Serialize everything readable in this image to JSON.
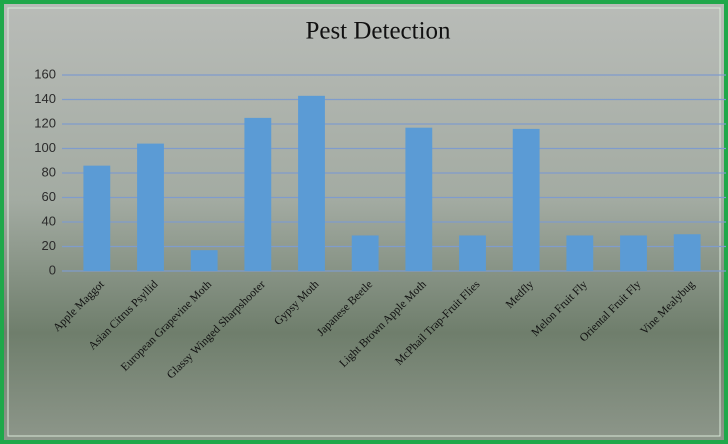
{
  "chart_data": {
    "type": "bar",
    "title": "Pest Detection",
    "categories": [
      "Apple Maggot",
      "Asian Citrus Psyllid",
      "European Grapevine Moth",
      "Glassy Winged Sharpshooter",
      "Gypsy Moth",
      "Japanese Beetle",
      "Light Brown Apple Moth",
      "McPhail Trap-Fruit Flies",
      "Medfly",
      "Melon Fruit Fly",
      "Oriental Fruit Fly",
      "Vine Mealybug"
    ],
    "values": [
      86,
      104,
      17,
      125,
      143,
      29,
      117,
      29,
      116,
      29,
      29,
      30
    ],
    "color": "#5b9bd5",
    "ylim": [
      0,
      160
    ],
    "yticks": [
      0,
      20,
      40,
      60,
      80,
      100,
      120,
      140,
      160
    ],
    "grid": true
  }
}
